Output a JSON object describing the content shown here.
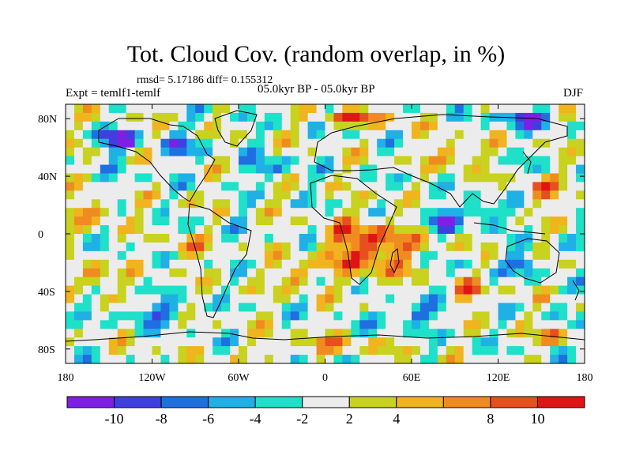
{
  "chart_data": {
    "type": "heatmap",
    "title": "Tot. Cloud Cov. (random overlap, in %)",
    "stats_line": "rmsd= 5.17186 diff= 0.155312",
    "experiment_label": "Expt = temlf1-temlf",
    "period_label": "05.0kyr BP - 05.0kyr BP",
    "season_label": "DJF",
    "x_range": [
      -180,
      180
    ],
    "y_range": [
      -90,
      90
    ],
    "x_ticks": [
      {
        "value": -180,
        "label": "180"
      },
      {
        "value": -120,
        "label": "120W"
      },
      {
        "value": -60,
        "label": "60W"
      },
      {
        "value": 0,
        "label": "0"
      },
      {
        "value": 60,
        "label": "60E"
      },
      {
        "value": 120,
        "label": "120E"
      },
      {
        "value": 180,
        "label": "180"
      }
    ],
    "y_ticks": [
      {
        "value": 80,
        "label": "80N"
      },
      {
        "value": 40,
        "label": "40N"
      },
      {
        "value": 0,
        "label": "0"
      },
      {
        "value": -40,
        "label": "40S"
      },
      {
        "value": -80,
        "label": "80S"
      }
    ],
    "colorbar": {
      "colors": [
        "#7f1fe6",
        "#3f3fe0",
        "#1f6fe0",
        "#1fb0e6",
        "#1fe0c8",
        "#ececec",
        "#c8d21f",
        "#f0b41f",
        "#f08c1f",
        "#e6501f",
        "#e01414"
      ],
      "boundaries": [
        -12,
        -10,
        -8,
        -6,
        -4,
        -2,
        2,
        4,
        6,
        8,
        10,
        12
      ],
      "labels": [
        {
          "value": -10,
          "label": "-10"
        },
        {
          "value": -8,
          "label": "-8"
        },
        {
          "value": -6,
          "label": "-6"
        },
        {
          "value": -4,
          "label": "-4"
        },
        {
          "value": -2,
          "label": "-2"
        },
        {
          "value": 2,
          "label": "2"
        },
        {
          "value": 4,
          "label": "4"
        },
        {
          "value": 8,
          "label": "8"
        },
        {
          "value": 10,
          "label": "10"
        }
      ]
    },
    "anomaly_features": [
      {
        "name": "africa-atlantic-positive",
        "lon": 30,
        "lat": -10,
        "value": 11,
        "spread_lon": 28,
        "spread_lat": 18
      },
      {
        "name": "south-atlantic-positive",
        "lon": -20,
        "lat": -30,
        "value": 9,
        "spread_lon": 10,
        "spread_lat": 8
      },
      {
        "name": "south-pacific-positive",
        "lon": -160,
        "lat": -30,
        "value": 9,
        "spread_lon": 10,
        "spread_lat": 8
      },
      {
        "name": "north-pacific-positive",
        "lon": -160,
        "lat": 15,
        "value": 8,
        "spread_lon": 16,
        "spread_lat": 7
      },
      {
        "name": "north-pacific-west-positive",
        "lon": 150,
        "lat": 30,
        "value": 8,
        "spread_lon": 12,
        "spread_lat": 8
      },
      {
        "name": "indian-ocean-negative",
        "lon": 80,
        "lat": 10,
        "value": -10,
        "spread_lon": 10,
        "spread_lat": 8
      },
      {
        "name": "west-pacific-negative",
        "lon": 110,
        "lat": 15,
        "value": -9,
        "spread_lon": 12,
        "spread_lat": 8
      },
      {
        "name": "north-pacific-negative",
        "lon": -145,
        "lat": 65,
        "value": -10,
        "spread_lon": 15,
        "spread_lat": 8
      },
      {
        "name": "arctic-positive",
        "lon": 20,
        "lat": 80,
        "value": 8,
        "spread_lon": 25,
        "spread_lat": 5
      },
      {
        "name": "arctic-negative",
        "lon": 140,
        "lat": 80,
        "value": -9,
        "spread_lon": 20,
        "spread_lat": 6
      },
      {
        "name": "north-atlantic-negative",
        "lon": -40,
        "lat": 45,
        "value": -7,
        "spread_lon": 15,
        "spread_lat": 8
      },
      {
        "name": "southern-ocean-negative",
        "lon": -120,
        "lat": -55,
        "value": -7,
        "spread_lon": 25,
        "spread_lat": 7
      },
      {
        "name": "southern-ocean-indian-negative",
        "lon": 60,
        "lat": -55,
        "value": -7,
        "spread_lon": 20,
        "spread_lat": 7
      },
      {
        "name": "australia-negative",
        "lon": 140,
        "lat": -20,
        "value": -8,
        "spread_lon": 10,
        "spread_lat": 8
      },
      {
        "name": "east-pacific-positive",
        "lon": -100,
        "lat": -10,
        "value": 7,
        "spread_lon": 12,
        "spread_lat": 7
      },
      {
        "name": "south-indian-positive",
        "lon": 100,
        "lat": -40,
        "value": 8,
        "spread_lon": 12,
        "spread_lat": 6
      },
      {
        "name": "siberia-positive",
        "lon": 90,
        "lat": 55,
        "value": 7,
        "spread_lon": 15,
        "spread_lat": 8
      },
      {
        "name": "canada-negative",
        "lon": -100,
        "lat": 60,
        "value": -6,
        "spread_lon": 15,
        "spread_lat": 8
      },
      {
        "name": "antarctic-positive",
        "lon": 0,
        "lat": -78,
        "value": 6,
        "spread_lon": 30,
        "spread_lat": 5
      },
      {
        "name": "ross-sea-positive",
        "lon": 160,
        "lat": -72,
        "value": 7,
        "spread_lon": 12,
        "spread_lat": 5
      }
    ]
  }
}
